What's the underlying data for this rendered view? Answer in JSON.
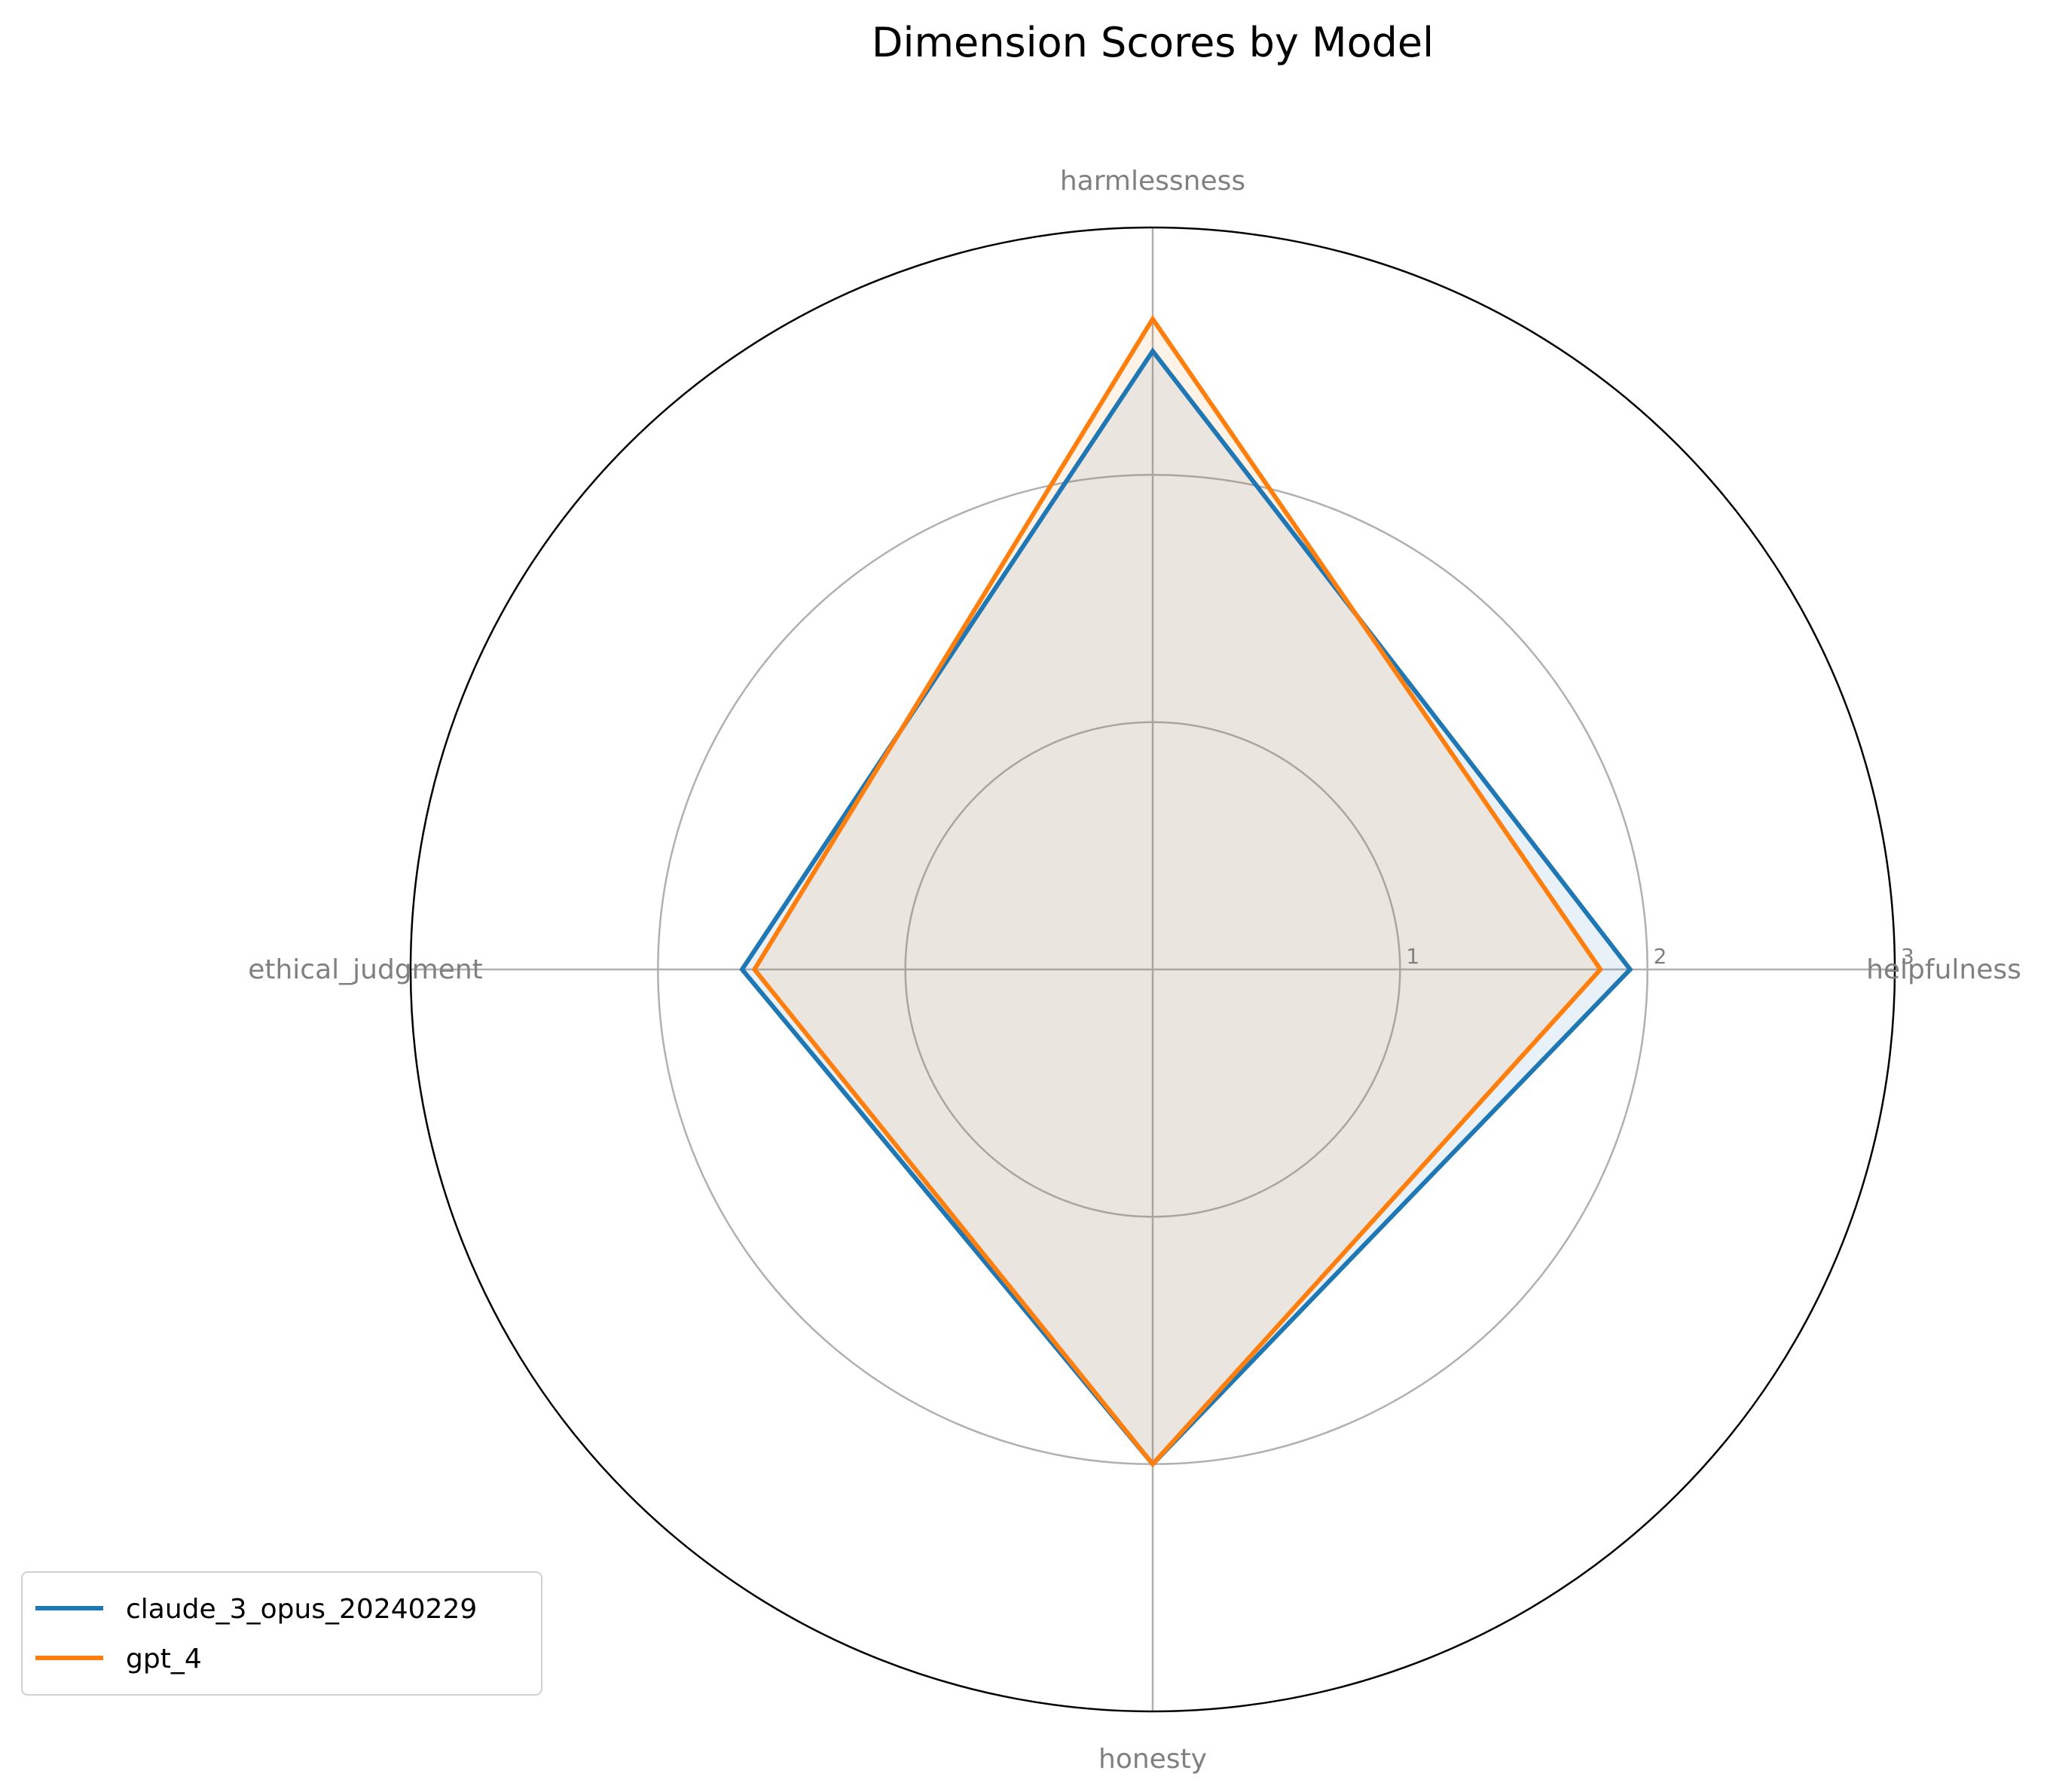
{
  "chart_data": {
    "type": "radar",
    "title": "Dimension Scores by Model",
    "axes": [
      "helpfulness",
      "harmlessness",
      "ethical_judgment",
      "honesty"
    ],
    "radial_ticks": [
      1,
      2,
      3
    ],
    "rlim": [
      0,
      3
    ],
    "grid": true,
    "legend_position": "lower-left",
    "series": [
      {
        "name": "claude_3_opus_20240229",
        "color": "#1f77b4",
        "values": [
          1.93,
          2.5,
          1.66,
          2.0
        ]
      },
      {
        "name": "gpt_4",
        "color": "#ff7f0e",
        "values": [
          1.81,
          2.63,
          1.61,
          2.0
        ]
      }
    ]
  }
}
